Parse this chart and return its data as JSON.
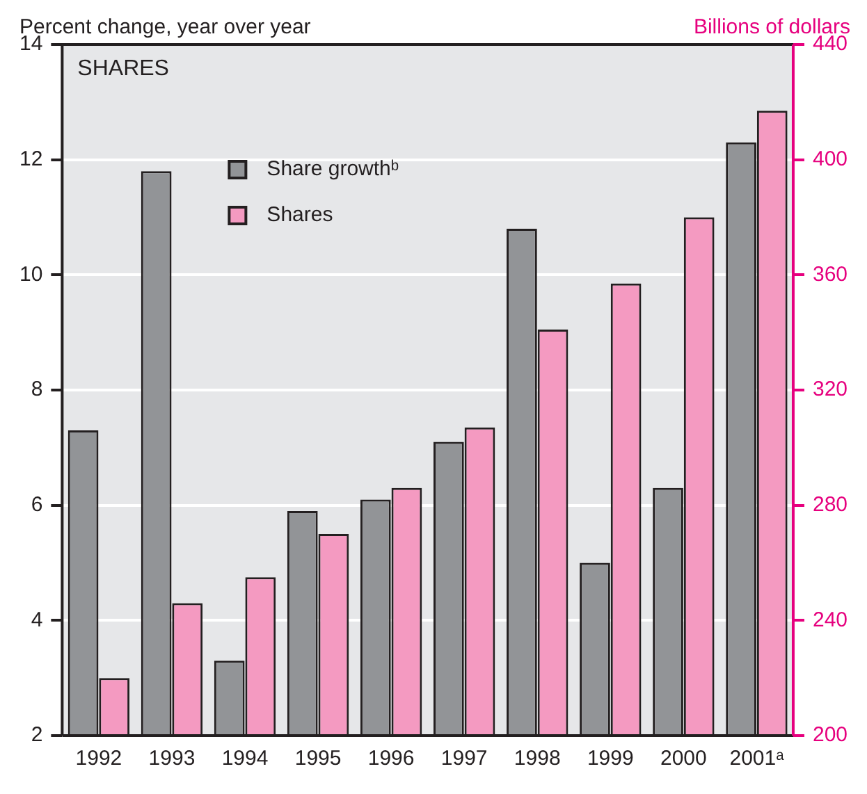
{
  "chart_data": {
    "type": "bar",
    "title": "SHARES",
    "ylabel": "Percent change, year over year",
    "y2label": "Billions of dollars",
    "categories": [
      "1992",
      "1993",
      "1994",
      "1995",
      "1996",
      "1997",
      "1998",
      "1999",
      "2000",
      "2001ᵃ"
    ],
    "series": [
      {
        "name": "Share growthᵇ",
        "color": "#929497",
        "values": [
          7.3,
          11.8,
          3.3,
          5.9,
          6.1,
          7.1,
          10.8,
          5.0,
          6.3,
          12.3
        ]
      },
      {
        "name": "Shares",
        "color": "#f49ac1",
        "axis": "y2",
        "values": [
          220,
          246,
          255,
          270,
          286,
          307,
          341,
          357,
          380,
          417
        ]
      }
    ],
    "ylim": [
      2,
      14
    ],
    "yticks": [
      2,
      4,
      6,
      8,
      10,
      12,
      14
    ],
    "y2lim": [
      200,
      440
    ],
    "y2ticks": [
      200,
      240,
      280,
      320,
      360,
      400,
      440
    ],
    "grid": "y",
    "legend": "top left"
  }
}
